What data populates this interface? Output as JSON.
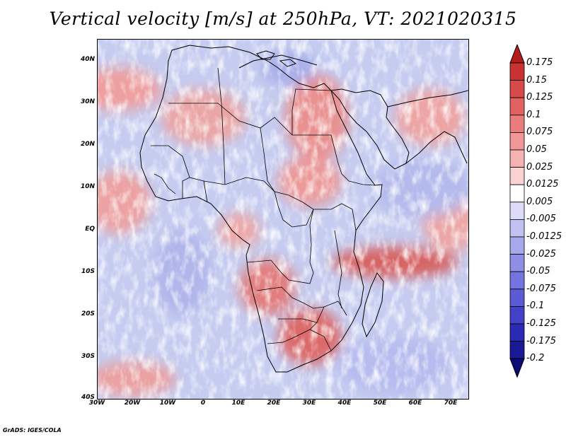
{
  "title": "Vertical velocity [m/s] at 250hPa, VT: 2021020315",
  "credit": "GrADS: IGES/COLA",
  "map": {
    "projection": "lat-lon",
    "lon_range": [
      -30,
      75
    ],
    "lat_range": [
      -40,
      45
    ],
    "lat_ticks": [
      "40N",
      "30N",
      "20N",
      "10N",
      "EQ",
      "10S",
      "20S",
      "30S",
      "40S"
    ],
    "lon_ticks": [
      "30W",
      "20W",
      "10W",
      "0",
      "10E",
      "20E",
      "30E",
      "40E",
      "50E",
      "60E",
      "70E"
    ],
    "background_color": "#c8cff0",
    "boundary_color": "#000000"
  },
  "colorbar": {
    "labels": [
      "0.175",
      "0.15",
      "0.125",
      "0.1",
      "0.075",
      "0.05",
      "0.025",
      "0.0125",
      "0.005",
      "-0.005",
      "-0.0125",
      "-0.025",
      "-0.05",
      "-0.075",
      "-0.1",
      "-0.125",
      "-0.175",
      "-0.2"
    ],
    "colors": [
      "#b41c1c",
      "#c83232",
      "#d74a4a",
      "#e26262",
      "#ea7c7c",
      "#f09696",
      "#f5b2b2",
      "#fad2d2",
      "#ffffff",
      "#dcdcf8",
      "#c2c2f2",
      "#a8a8ec",
      "#8e8ee6",
      "#7474de",
      "#5a5ad4",
      "#4242c8",
      "#2a2ab4",
      "#1a1a96",
      "#0c0c78"
    ]
  }
}
